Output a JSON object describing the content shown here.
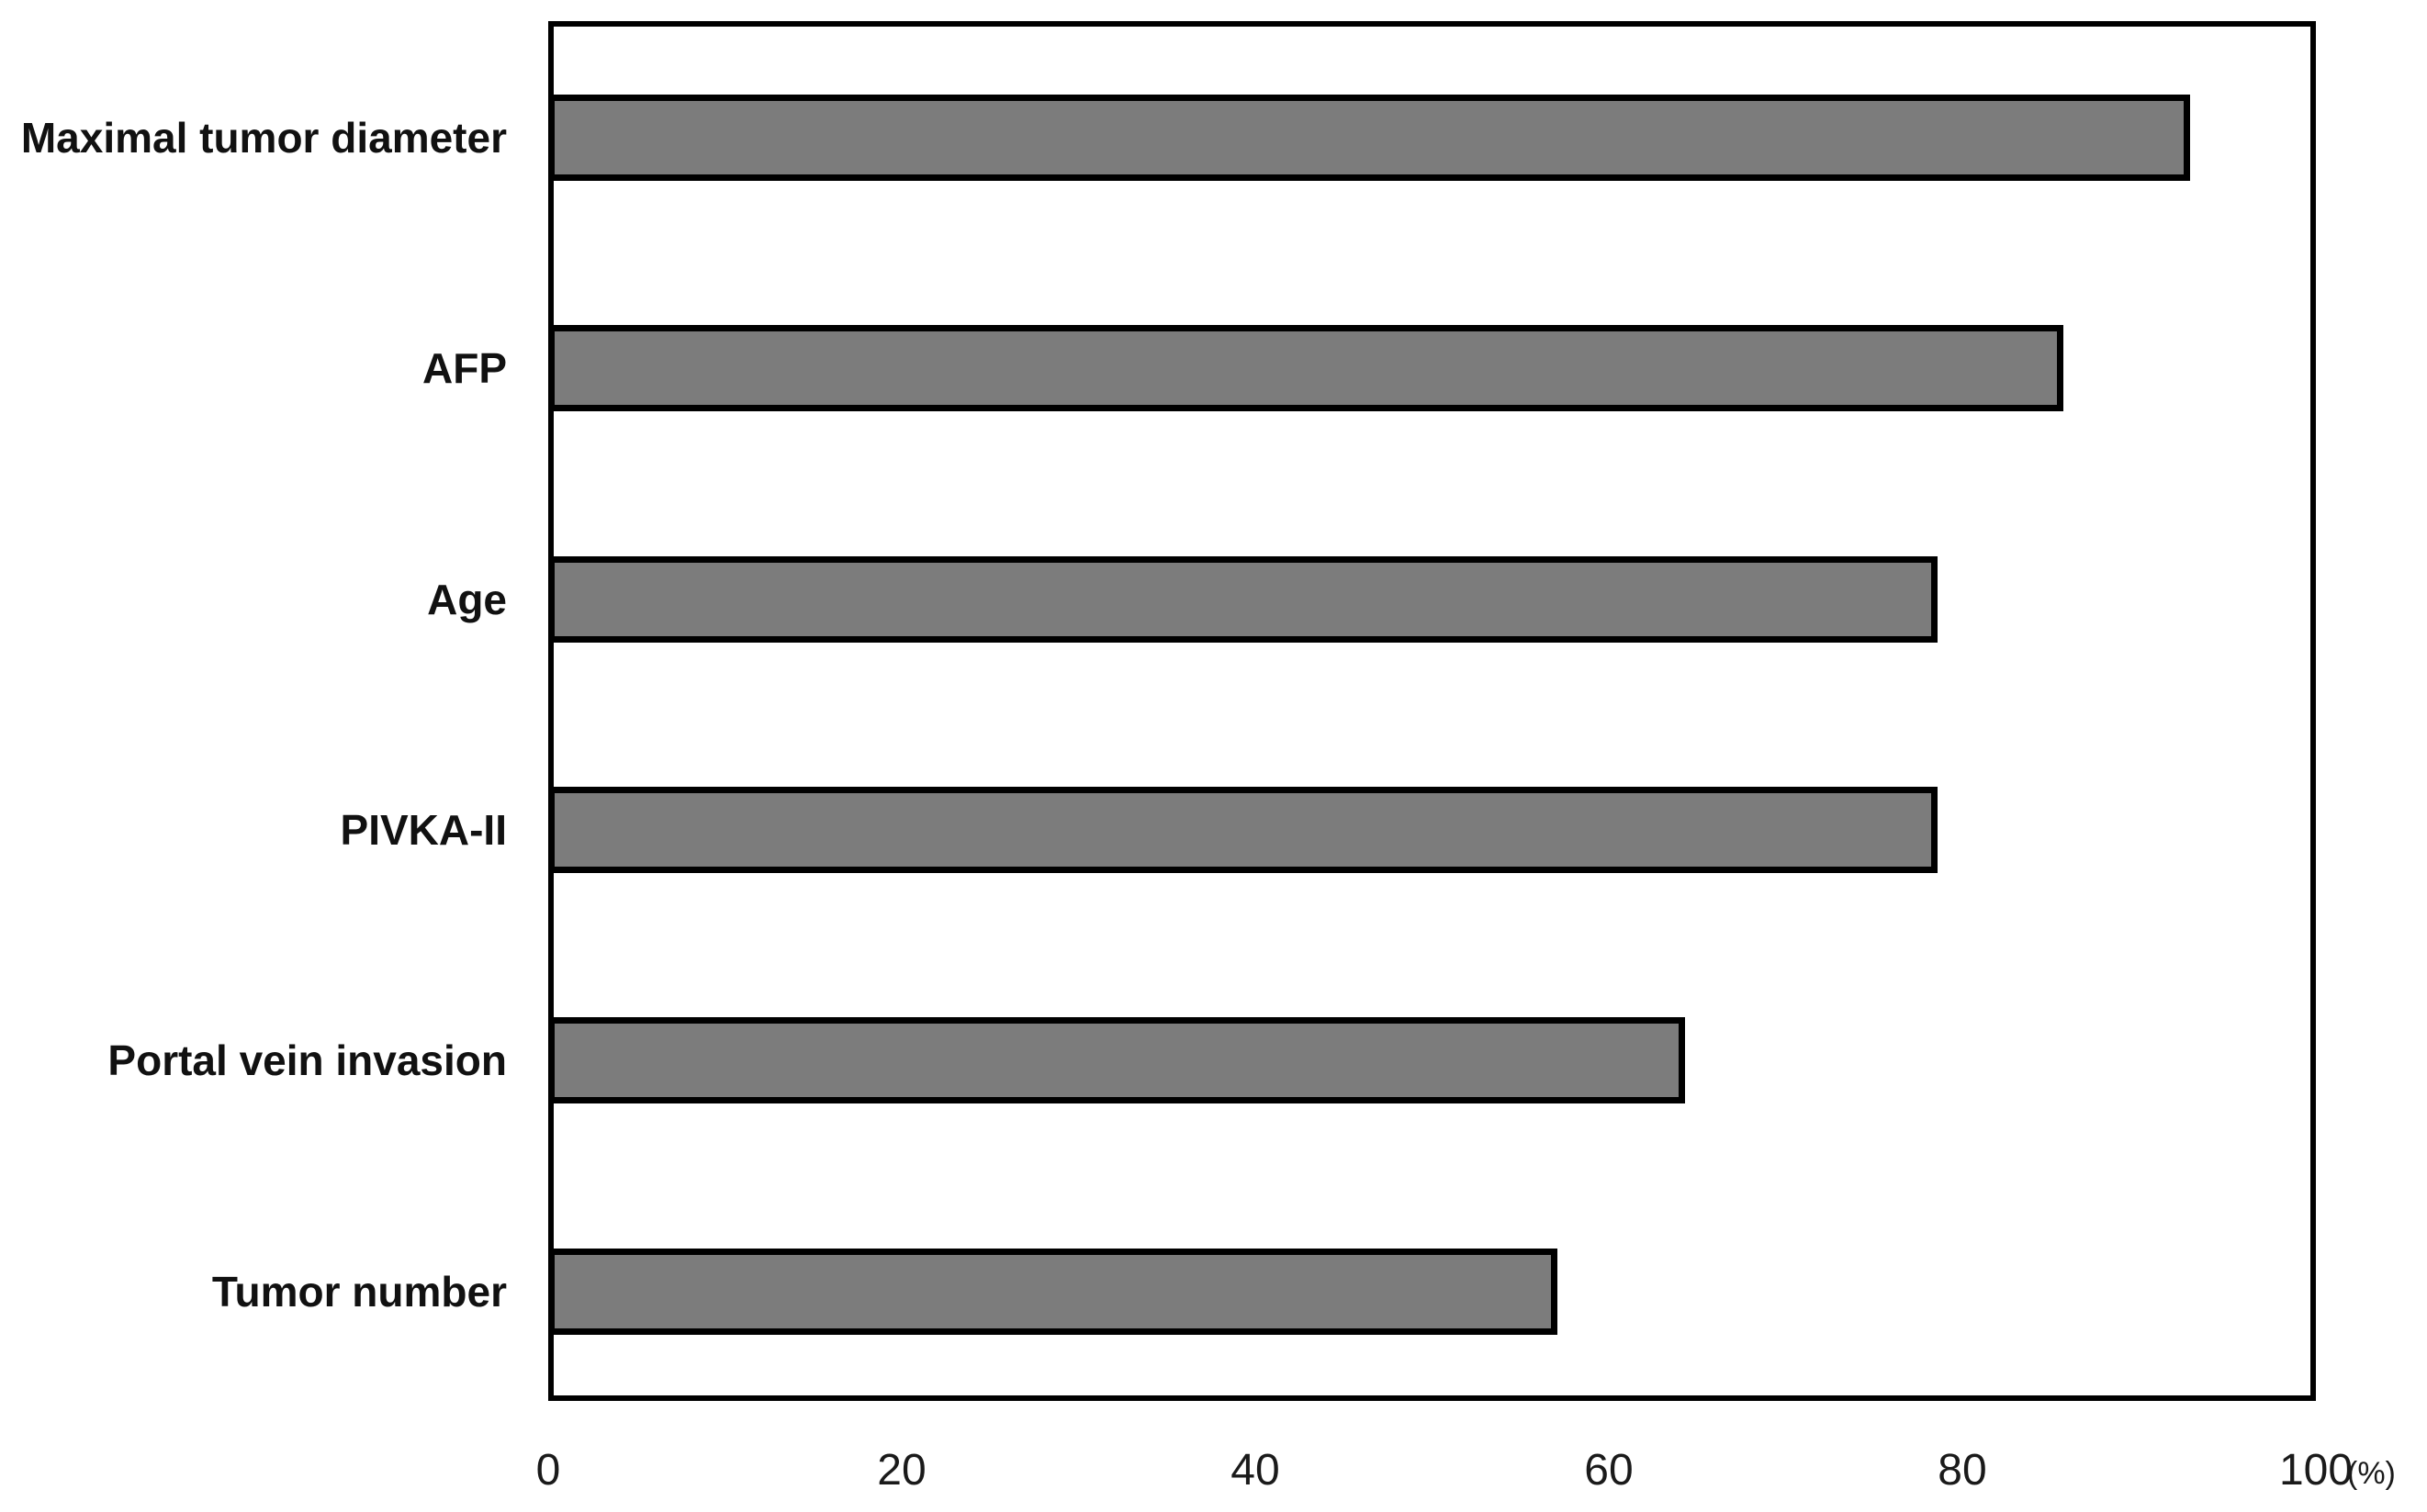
{
  "figure": {
    "unit_label": "(%)"
  },
  "chart_data": {
    "type": "bar",
    "orientation": "horizontal",
    "categories": [
      "Maximal tumor diameter",
      "AFP",
      "Age",
      "PIVKA-II",
      "Portal vein invasion",
      "Tumor number"
    ],
    "values": [
      92.9,
      85.7,
      78.6,
      78.6,
      64.3,
      57.1
    ],
    "xlabel": "(%)",
    "ylabel": "",
    "xlim": [
      0,
      100
    ],
    "x_ticks": [
      0,
      20,
      40,
      60,
      80,
      100
    ],
    "grid": false,
    "legend": false,
    "bar_fill_color": "#7c7c7c",
    "bar_border_color": "#000000",
    "axis_color": "#000000",
    "background_color": "#ffffff"
  }
}
